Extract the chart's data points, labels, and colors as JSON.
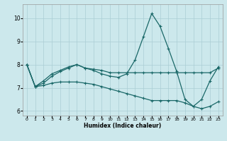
{
  "xlabel": "Humidex (Indice chaleur)",
  "xlim": [
    -0.5,
    23.5
  ],
  "ylim": [
    5.8,
    10.6
  ],
  "yticks": [
    6,
    7,
    8,
    9,
    10
  ],
  "xticks": [
    0,
    1,
    2,
    3,
    4,
    5,
    6,
    7,
    8,
    9,
    10,
    11,
    12,
    13,
    14,
    15,
    16,
    17,
    18,
    19,
    20,
    21,
    22,
    23
  ],
  "bg_color": "#cce8ec",
  "line_color": "#1a6868",
  "grid_color": "#aacdd4",
  "series1_x": [
    0,
    1,
    2,
    3,
    4,
    5,
    6,
    7,
    8,
    9,
    10,
    11,
    12,
    13,
    14,
    15,
    16,
    17,
    18,
    19,
    20,
    21,
    22,
    23
  ],
  "series1_y": [
    8.0,
    7.05,
    7.3,
    7.6,
    7.75,
    7.9,
    8.0,
    7.85,
    7.8,
    7.75,
    7.65,
    7.65,
    7.65,
    7.65,
    7.65,
    7.65,
    7.65,
    7.65,
    7.65,
    7.65,
    7.65,
    7.65,
    7.65,
    7.85
  ],
  "series2_x": [
    0,
    1,
    2,
    3,
    4,
    5,
    6,
    7,
    8,
    9,
    10,
    11,
    12,
    13,
    14,
    15,
    16,
    17,
    18,
    19,
    20,
    21,
    22,
    23
  ],
  "series2_y": [
    8.0,
    7.05,
    7.2,
    7.5,
    7.7,
    7.85,
    8.0,
    7.85,
    7.75,
    7.6,
    7.5,
    7.45,
    7.6,
    8.2,
    9.2,
    10.2,
    9.65,
    8.7,
    7.7,
    6.5,
    6.2,
    6.5,
    7.3,
    7.9
  ],
  "series3_x": [
    0,
    1,
    2,
    3,
    4,
    5,
    6,
    7,
    8,
    9,
    10,
    11,
    12,
    13,
    14,
    15,
    16,
    17,
    18,
    19,
    20,
    21,
    22,
    23
  ],
  "series3_y": [
    8.0,
    7.05,
    7.1,
    7.2,
    7.25,
    7.25,
    7.25,
    7.2,
    7.15,
    7.05,
    6.95,
    6.85,
    6.75,
    6.65,
    6.55,
    6.45,
    6.45,
    6.45,
    6.45,
    6.35,
    6.2,
    6.1,
    6.2,
    6.4
  ]
}
